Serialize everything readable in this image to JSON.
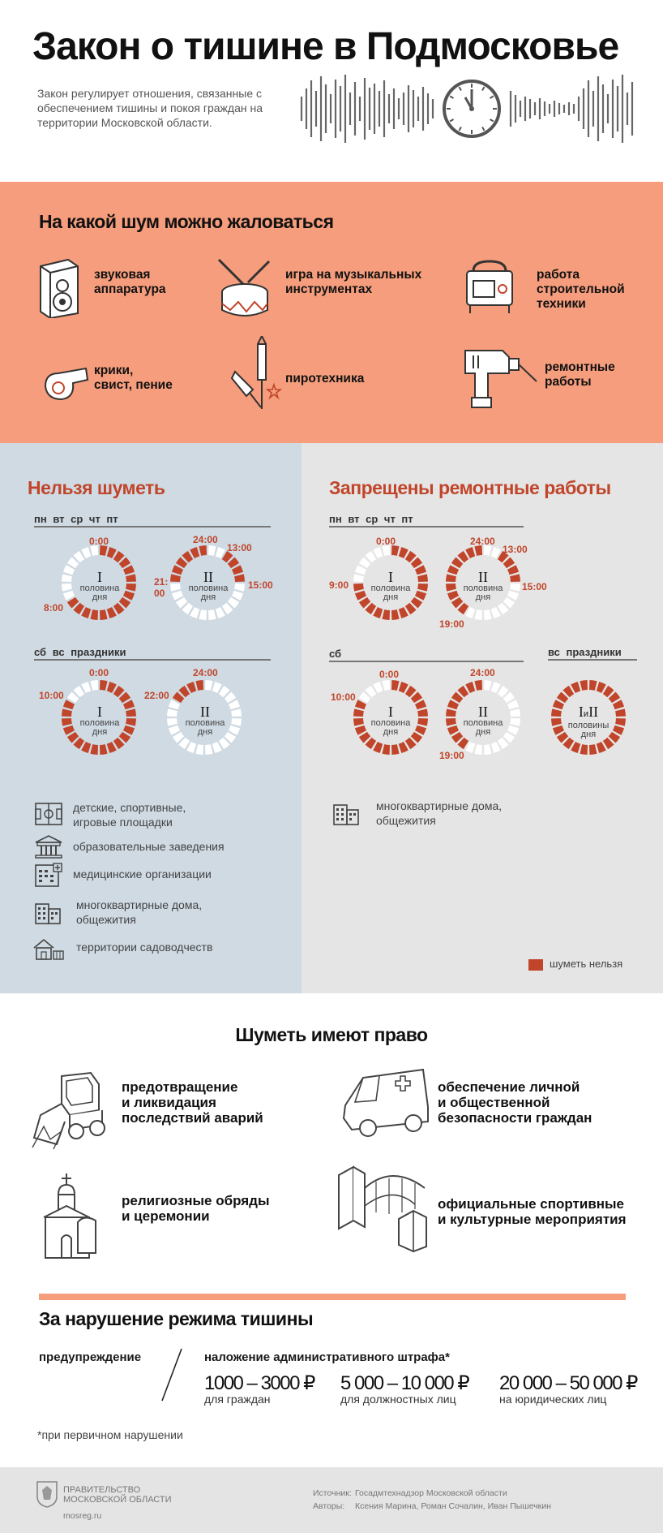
{
  "header": {
    "title": "Закон о тишине в Подмосковье",
    "intro": "Закон регулирует отношения, связанные с обеспечением тишины и покоя граждан на территории Московской области."
  },
  "complain": {
    "heading": "На какой шум можно жаловаться",
    "items": [
      {
        "icon": "speaker-icon",
        "label": "звуковая\nаппаратура"
      },
      {
        "icon": "drum-icon",
        "label": "игра на музыкальных\nинструментах"
      },
      {
        "icon": "generator-icon",
        "label": "работа\nстроительной\nтехники"
      },
      {
        "icon": "whistle-icon",
        "label": "крики,\nсвист, пение"
      },
      {
        "icon": "firework-icon",
        "label": "пиротехника"
      },
      {
        "icon": "drill-icon",
        "label": "ремонтные\nработы"
      }
    ]
  },
  "noshout": {
    "heading": "Нельзя шуметь",
    "weekdays": "пн вт ср чт пт",
    "weekend": "сб вс праздники",
    "weekday_first": {
      "roman": "I",
      "sub": "половина\nдня",
      "top": "0:00",
      "left": "8:00"
    },
    "weekday_second": {
      "roman": "II",
      "sub": "половина\nдня",
      "top": "24:00",
      "right_top": "13:00",
      "right": "15:00",
      "left": "21:\n00"
    },
    "weekend_first": {
      "roman": "I",
      "sub": "половина\nдня",
      "top": "0:00",
      "left": "10:00"
    },
    "weekend_second": {
      "roman": "II",
      "sub": "половина\nдня",
      "top": "24:00",
      "left": "22:00"
    },
    "places": [
      {
        "icon": "playground-icon",
        "label": "детские, спортивные,\nигровые площадки"
      },
      {
        "icon": "school-icon",
        "label": "образовательные заведения"
      },
      {
        "icon": "hospital-icon",
        "label": "медицинские организации"
      },
      {
        "icon": "apartment-icon",
        "label": "многоквартирные дома,\nобщежития"
      },
      {
        "icon": "cottage-icon",
        "label": "территории садоводчеств"
      }
    ]
  },
  "norepair": {
    "heading": "Запрещены ремонтные работы",
    "weekdays": "пн вт ср чт пт",
    "saturday": "сб",
    "sunday": "вс праздники",
    "weekday_first": {
      "roman": "I",
      "sub": "половина\nдня",
      "top": "0:00",
      "left": "9:00"
    },
    "weekday_second": {
      "roman": "II",
      "sub": "половина\nдня",
      "top": "24:00",
      "right_top": "13:00",
      "right": "15:00",
      "bottom": "19:00"
    },
    "sat_first": {
      "roman": "I",
      "sub": "половина\nдня",
      "top": "0:00",
      "left": "10:00"
    },
    "sat_second": {
      "roman": "II",
      "sub": "половина\nдня",
      "top": "24:00",
      "bottom": "19:00"
    },
    "sunday_full": {
      "roman_a": "I",
      "roman_and": "и",
      "roman_b": "II",
      "sub": "половины\nдня"
    },
    "places": [
      {
        "icon": "apartment-icon",
        "label": "многоквартирные дома,\nобщежития"
      }
    ],
    "legend": "шуметь нельзя"
  },
  "allowed": {
    "heading": "Шуметь имеют право",
    "items": [
      {
        "icon": "bulldozer-icon",
        "label": "предотвращение\nи ликвидация\nпоследствий аварий"
      },
      {
        "icon": "ambulance-icon",
        "label": "обеспечение личной\nи общественной\nбезопасности граждан"
      },
      {
        "icon": "church-icon",
        "label": "религиозные обряды\nи церемонии"
      },
      {
        "icon": "stadium-icon",
        "label": "официальные спортивные\nи культурные мероприятия"
      }
    ]
  },
  "fines": {
    "heading": "За нарушение режима тишины",
    "warning": "предупреждение",
    "fine_label": "наложение административного штрафа*",
    "amounts": [
      {
        "value": "1000 – 3000 ₽",
        "who": "для граждан"
      },
      {
        "value": "5 000 – 10 000 ₽",
        "who": "для должностных лиц"
      },
      {
        "value": "20 000 – 50 000 ₽",
        "who": "на юридических лиц"
      }
    ],
    "footnote": "*при первичном нарушении"
  },
  "footer": {
    "org_line1": "ПРАВИТЕЛЬСТВО",
    "org_line2": "МОСКОВСКОЙ ОБЛАСТИ",
    "site": "mosreg.ru",
    "source_label": "Источник:",
    "source": "Госадмтехнадзор Московской области",
    "authors_label": "Авторы:",
    "authors": "Ксения Марина, Роман Сочалин, Иван Пышечкин"
  },
  "colors": {
    "accent": "#c0452a",
    "salmon": "#f59d7c",
    "blue_panel": "#cfdae3",
    "gray_panel": "#e5e5e5"
  }
}
